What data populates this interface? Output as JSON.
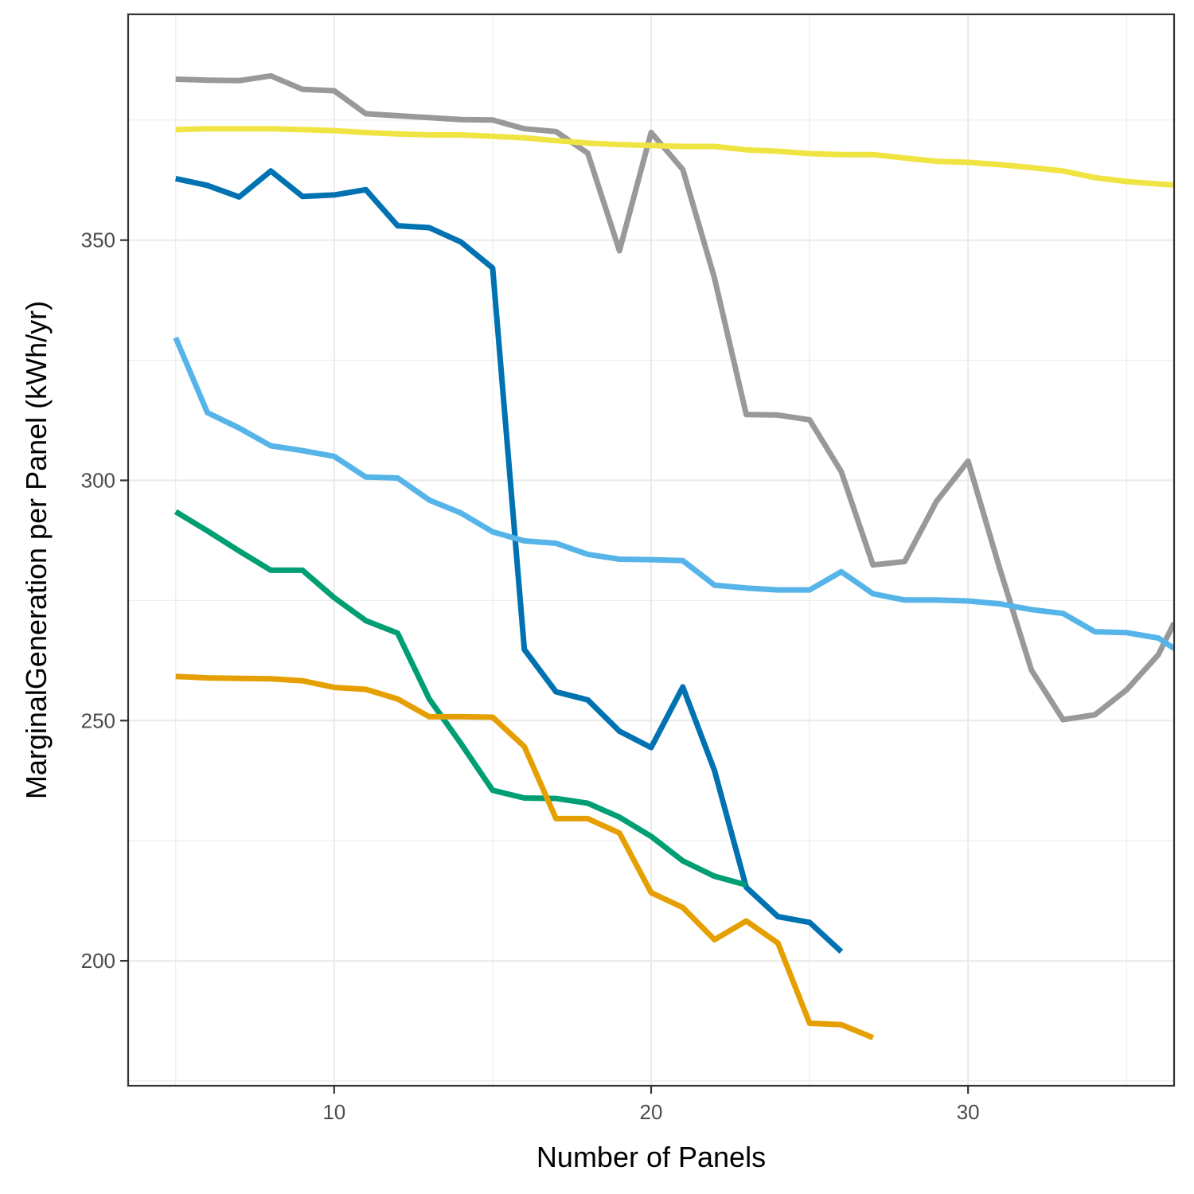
{
  "chart_data": {
    "type": "line",
    "title": "",
    "xlabel": "Number of Panels",
    "ylabel": "MarginalGeneration per Panel (kWh/yr)",
    "xlim": [
      3.5,
      36.5
    ],
    "ylim": [
      174,
      397
    ],
    "x_ticks": [
      10,
      20,
      30
    ],
    "y_ticks": [
      200,
      250,
      300,
      350
    ],
    "grid": true,
    "legend": "none",
    "series": [
      {
        "color": "#999999",
        "points": [
          [
            5,
            383.5
          ],
          [
            6,
            383.3
          ],
          [
            7,
            383.2
          ],
          [
            8,
            384.2
          ],
          [
            9,
            381.4
          ],
          [
            10,
            381.1
          ],
          [
            11,
            376.3
          ],
          [
            12,
            375.9
          ],
          [
            13,
            375.5
          ],
          [
            14,
            375.1
          ],
          [
            15,
            375.0
          ],
          [
            16,
            373.2
          ],
          [
            17,
            372.6
          ],
          [
            18,
            368.1
          ],
          [
            19,
            347.8
          ],
          [
            20,
            372.4
          ],
          [
            21,
            364.7
          ],
          [
            22,
            342.1
          ],
          [
            23,
            313.7
          ],
          [
            24,
            313.6
          ],
          [
            25,
            312.6
          ],
          [
            26,
            301.8
          ],
          [
            27,
            282.4
          ],
          [
            28,
            283.1
          ],
          [
            29,
            295.6
          ],
          [
            30,
            304.0
          ],
          [
            31,
            281.6
          ],
          [
            32,
            260.5
          ],
          [
            33,
            250.2
          ],
          [
            34,
            251.2
          ],
          [
            35,
            256.4
          ],
          [
            36,
            263.7
          ],
          [
            36.5,
            270.3
          ]
        ]
      },
      {
        "color": "#F0E442",
        "points": [
          [
            5,
            373.0
          ],
          [
            6,
            373.2
          ],
          [
            7,
            373.2
          ],
          [
            8,
            373.2
          ],
          [
            9,
            373.0
          ],
          [
            10,
            372.8
          ],
          [
            11,
            372.4
          ],
          [
            12,
            372.1
          ],
          [
            13,
            371.9
          ],
          [
            14,
            371.9
          ],
          [
            15,
            371.6
          ],
          [
            16,
            371.3
          ],
          [
            17,
            370.7
          ],
          [
            18,
            370.2
          ],
          [
            19,
            369.9
          ],
          [
            20,
            369.7
          ],
          [
            21,
            369.5
          ],
          [
            22,
            369.5
          ],
          [
            23,
            368.8
          ],
          [
            24,
            368.5
          ],
          [
            25,
            368.0
          ],
          [
            26,
            367.8
          ],
          [
            27,
            367.8
          ],
          [
            28,
            367.1
          ],
          [
            29,
            366.4
          ],
          [
            30,
            366.2
          ],
          [
            31,
            365.7
          ],
          [
            32,
            365.1
          ],
          [
            33,
            364.4
          ],
          [
            34,
            363.0
          ],
          [
            35,
            362.2
          ],
          [
            36,
            361.7
          ],
          [
            36.5,
            361.5
          ]
        ]
      },
      {
        "color": "#0072B2",
        "points": [
          [
            5,
            362.8
          ],
          [
            6,
            361.4
          ],
          [
            7,
            359.0
          ],
          [
            8,
            364.4
          ],
          [
            9,
            359.1
          ],
          [
            10,
            359.4
          ],
          [
            11,
            360.5
          ],
          [
            12,
            353.0
          ],
          [
            13,
            352.6
          ],
          [
            14,
            349.6
          ],
          [
            15,
            344.2
          ],
          [
            16,
            264.8
          ],
          [
            17,
            256.0
          ],
          [
            18,
            254.3
          ],
          [
            19,
            247.8
          ],
          [
            20,
            244.4
          ],
          [
            21,
            257.0
          ],
          [
            22,
            239.6
          ],
          [
            23,
            215.3
          ],
          [
            24,
            209.2
          ],
          [
            25,
            208.0
          ],
          [
            26,
            201.9
          ]
        ]
      },
      {
        "color": "#56B4E9",
        "points": [
          [
            5,
            329.7
          ],
          [
            6,
            314.1
          ],
          [
            7,
            310.9
          ],
          [
            8,
            307.2
          ],
          [
            9,
            306.2
          ],
          [
            10,
            305.0
          ],
          [
            11,
            300.7
          ],
          [
            12,
            300.5
          ],
          [
            13,
            295.9
          ],
          [
            14,
            293.2
          ],
          [
            15,
            289.3
          ],
          [
            16,
            287.4
          ],
          [
            17,
            286.9
          ],
          [
            18,
            284.6
          ],
          [
            19,
            283.6
          ],
          [
            20,
            283.5
          ],
          [
            21,
            283.3
          ],
          [
            22,
            278.2
          ],
          [
            23,
            277.6
          ],
          [
            24,
            277.2
          ],
          [
            25,
            277.2
          ],
          [
            26,
            281.0
          ],
          [
            27,
            276.4
          ],
          [
            28,
            275.1
          ],
          [
            29,
            275.1
          ],
          [
            30,
            274.9
          ],
          [
            31,
            274.3
          ],
          [
            32,
            273.1
          ],
          [
            33,
            272.3
          ],
          [
            34,
            268.5
          ],
          [
            35,
            268.3
          ],
          [
            36,
            267.2
          ],
          [
            36.5,
            265.0
          ]
        ]
      },
      {
        "color": "#009E73",
        "points": [
          [
            5,
            293.5
          ],
          [
            6,
            289.5
          ],
          [
            7,
            285.3
          ],
          [
            8,
            281.3
          ],
          [
            9,
            281.3
          ],
          [
            10,
            275.6
          ],
          [
            11,
            270.8
          ],
          [
            12,
            268.2
          ],
          [
            13,
            254.5
          ],
          [
            14,
            245.2
          ],
          [
            15,
            235.5
          ],
          [
            16,
            233.9
          ],
          [
            17,
            233.8
          ],
          [
            18,
            232.8
          ],
          [
            19,
            229.9
          ],
          [
            20,
            225.9
          ],
          [
            21,
            220.8
          ],
          [
            22,
            217.6
          ],
          [
            23,
            215.8
          ]
        ]
      },
      {
        "color": "#E69F00",
        "points": [
          [
            5,
            259.2
          ],
          [
            6,
            258.9
          ],
          [
            7,
            258.8
          ],
          [
            8,
            258.7
          ],
          [
            9,
            258.3
          ],
          [
            10,
            256.9
          ],
          [
            11,
            256.5
          ],
          [
            12,
            254.5
          ],
          [
            13,
            250.8
          ],
          [
            14,
            250.8
          ],
          [
            15,
            250.7
          ],
          [
            16,
            244.6
          ],
          [
            17,
            229.6
          ],
          [
            18,
            229.6
          ],
          [
            19,
            226.6
          ],
          [
            20,
            214.2
          ],
          [
            21,
            211.1
          ],
          [
            22,
            204.4
          ],
          [
            23,
            208.3
          ],
          [
            24,
            203.7
          ],
          [
            25,
            187.0
          ],
          [
            26,
            186.7
          ],
          [
            27,
            184.0
          ]
        ]
      }
    ]
  }
}
